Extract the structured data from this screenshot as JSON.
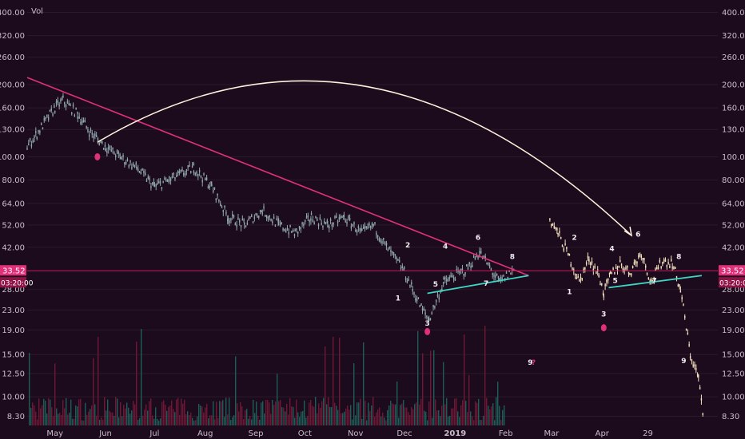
{
  "chart_data": {
    "type": "candlestick",
    "indicator_label": "Vol",
    "y_scale": "log",
    "ylim": [
      7.6,
      430
    ],
    "y_ticks": [
      "400.00",
      "320.00",
      "260.00",
      "200.00",
      "160.00",
      "130.00",
      "100.00",
      "80.00",
      "64.00",
      "52.00",
      "42.00",
      "33.52",
      "28.00",
      "23.00",
      "19.00",
      "15.00",
      "12.50",
      "10.00",
      "8.30"
    ],
    "x_ticks": [
      "May",
      "Jun",
      "Jul",
      "Aug",
      "Sep",
      "Oct",
      "Nov",
      "Dec",
      "2019",
      "Feb",
      "Mar",
      "Apr",
      "29"
    ],
    "price_line": {
      "value": 33.52,
      "label": "33.52",
      "countdown": "03:20:00"
    },
    "colors": {
      "background": "#1c0b1c",
      "grid": "#2a1a2a",
      "fractal_candles": "#f5e1c0",
      "history_candles": "#8fa7ad",
      "trendline": "#e0307a",
      "support": "#3ed6c4",
      "arc": "#fff1dd",
      "price_line": "#c2185b",
      "volume_up": "#1f6b63",
      "volume_down": "#7a1c3a"
    },
    "series": [
      {
        "role": "history",
        "x": [
          "2018-04-14",
          "2018-04-20",
          "2018-05-01",
          "2018-05-06",
          "2018-05-15",
          "2018-05-22",
          "2018-06-01",
          "2018-06-10",
          "2018-06-20",
          "2018-07-01",
          "2018-07-10",
          "2018-07-25",
          "2018-08-05",
          "2018-08-15",
          "2018-08-25",
          "2018-09-05",
          "2018-09-15",
          "2018-09-25",
          "2018-10-05",
          "2018-10-15",
          "2018-10-25",
          "2018-11-05",
          "2018-11-12",
          "2018-11-20",
          "2018-11-30",
          "2018-12-06",
          "2018-12-12",
          "2018-12-16",
          "2018-12-25",
          "2019-01-08",
          "2019-01-16",
          "2019-01-28",
          "2019-02-06"
        ],
        "close": [
          110,
          125,
          160,
          172,
          150,
          128,
          110,
          100,
          90,
          75,
          80,
          90,
          75,
          56,
          52,
          60,
          52,
          48,
          56,
          52,
          56,
          48,
          52,
          42,
          34,
          28,
          23,
          21,
          30,
          34,
          40,
          30,
          34
        ]
      },
      {
        "role": "fractal",
        "x": [
          "2019-02-28",
          "2019-03-05",
          "2019-03-12",
          "2019-03-18",
          "2019-03-24",
          "2019-03-30",
          "2019-04-02",
          "2019-04-06",
          "2019-04-12",
          "2019-04-18",
          "2019-04-25",
          "2019-05-01",
          "2019-05-08",
          "2019-05-14",
          "2019-05-19",
          "2019-05-25",
          "2019-05-30",
          "2019-06-02"
        ],
        "close": [
          55,
          48,
          38,
          30,
          38,
          32,
          27,
          32,
          36,
          33,
          40,
          30,
          37,
          36,
          28,
          15,
          12,
          8
        ]
      }
    ],
    "wave_labels": [
      {
        "text": "1",
        "x": "2018-11-27",
        "y": 25.2
      },
      {
        "text": "2",
        "x": "2018-12-03",
        "y": 42
      },
      {
        "text": "3",
        "x": "2018-12-15",
        "y": 19.8
      },
      {
        "text": "4",
        "x": "2018-12-26",
        "y": 41.5
      },
      {
        "text": "5",
        "x": "2018-12-20",
        "y": 28.8
      },
      {
        "text": "6",
        "x": "2019-01-15",
        "y": 45
      },
      {
        "text": "7",
        "x": "2019-01-20",
        "y": 29
      },
      {
        "text": "8",
        "x": "2019-02-05",
        "y": 37.5
      },
      {
        "text": "9",
        "x": "2019-02-16",
        "y": 13.6
      },
      {
        "text": "1",
        "x": "2019-03-12",
        "y": 26.8
      },
      {
        "text": "2",
        "x": "2019-03-15",
        "y": 45
      },
      {
        "text": "3",
        "x": "2019-04-02",
        "y": 21.6
      },
      {
        "text": "4",
        "x": "2019-04-07",
        "y": 40.5
      },
      {
        "text": "5",
        "x": "2019-04-09",
        "y": 29.8
      },
      {
        "text": "6",
        "x": "2019-04-23",
        "y": 46.5
      },
      {
        "text": "7",
        "x": "2019-05-03",
        "y": 29.8
      },
      {
        "text": "8",
        "x": "2019-05-18",
        "y": 37.5
      },
      {
        "text": "9",
        "x": "2019-05-21",
        "y": 13.8
      }
    ],
    "question_mark": {
      "text": "?",
      "x": "2019-02-18",
      "y": 13.6
    },
    "markers": [
      {
        "x": "2018-05-27",
        "y": 100
      },
      {
        "x": "2018-12-15",
        "y": 18.7
      },
      {
        "x": "2019-04-02",
        "y": 19.4
      }
    ],
    "trendline": {
      "from": {
        "x": "2018-04-14",
        "y": 214
      },
      "to": {
        "x": "2019-02-15",
        "y": 32
      }
    },
    "support_lines": [
      {
        "from": {
          "x": "2018-12-15",
          "y": 27
        },
        "to": {
          "x": "2019-02-15",
          "y": 32
        }
      },
      {
        "from": {
          "x": "2019-04-05",
          "y": 28.5
        },
        "to": {
          "x": "2019-06-01",
          "y": 32
        }
      }
    ],
    "arc": {
      "from": {
        "x": "2018-05-27",
        "y": 115
      },
      "to": {
        "x": "2019-04-19",
        "y": 47
      },
      "apex_y": 197
    }
  }
}
